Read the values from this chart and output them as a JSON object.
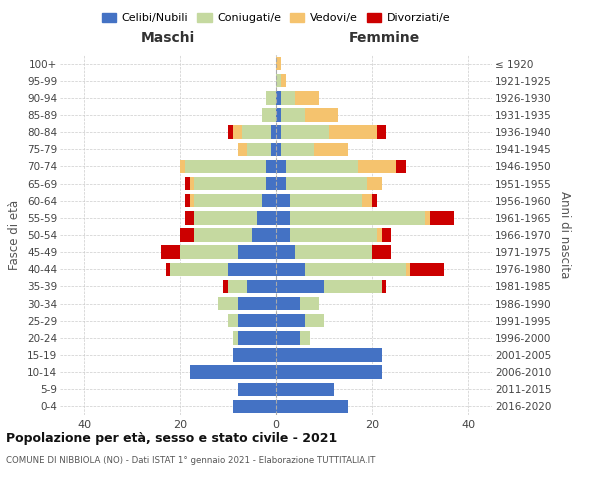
{
  "age_groups": [
    "0-4",
    "5-9",
    "10-14",
    "15-19",
    "20-24",
    "25-29",
    "30-34",
    "35-39",
    "40-44",
    "45-49",
    "50-54",
    "55-59",
    "60-64",
    "65-69",
    "70-74",
    "75-79",
    "80-84",
    "85-89",
    "90-94",
    "95-99",
    "100+"
  ],
  "birth_years": [
    "2016-2020",
    "2011-2015",
    "2006-2010",
    "2001-2005",
    "1996-2000",
    "1991-1995",
    "1986-1990",
    "1981-1985",
    "1976-1980",
    "1971-1975",
    "1966-1970",
    "1961-1965",
    "1956-1960",
    "1951-1955",
    "1946-1950",
    "1941-1945",
    "1936-1940",
    "1931-1935",
    "1926-1930",
    "1921-1925",
    "≤ 1920"
  ],
  "colors": {
    "celibi": "#4472C4",
    "coniugati": "#c5d9a0",
    "vedovi": "#f5c36e",
    "divorziati": "#cc0000"
  },
  "maschi": {
    "celibi": [
      9,
      8,
      18,
      9,
      8,
      8,
      8,
      6,
      10,
      8,
      5,
      4,
      3,
      2,
      2,
      1,
      1,
      0,
      0,
      0,
      0
    ],
    "coniugati": [
      0,
      0,
      0,
      0,
      1,
      2,
      4,
      4,
      12,
      12,
      12,
      13,
      14,
      15,
      17,
      5,
      6,
      3,
      2,
      0,
      0
    ],
    "vedovi": [
      0,
      0,
      0,
      0,
      0,
      0,
      0,
      0,
      0,
      0,
      0,
      0,
      1,
      1,
      1,
      2,
      2,
      0,
      0,
      0,
      0
    ],
    "divorziati": [
      0,
      0,
      0,
      0,
      0,
      0,
      0,
      1,
      1,
      4,
      3,
      2,
      1,
      1,
      0,
      0,
      1,
      0,
      0,
      0,
      0
    ]
  },
  "femmine": {
    "celibi": [
      15,
      12,
      22,
      22,
      5,
      6,
      5,
      10,
      6,
      4,
      3,
      3,
      3,
      2,
      2,
      1,
      1,
      1,
      1,
      0,
      0
    ],
    "coniugati": [
      0,
      0,
      0,
      0,
      2,
      4,
      4,
      12,
      21,
      16,
      18,
      28,
      15,
      17,
      15,
      7,
      10,
      5,
      3,
      1,
      0
    ],
    "vedovi": [
      0,
      0,
      0,
      0,
      0,
      0,
      0,
      0,
      1,
      0,
      1,
      1,
      2,
      3,
      8,
      7,
      10,
      7,
      5,
      1,
      1
    ],
    "divorziati": [
      0,
      0,
      0,
      0,
      0,
      0,
      0,
      1,
      7,
      4,
      2,
      5,
      1,
      0,
      2,
      0,
      2,
      0,
      0,
      0,
      0
    ]
  },
  "xlim": 45,
  "title": "Popolazione per età, sesso e stato civile - 2021",
  "subtitle": "COMUNE DI NIBBIOLA (NO) - Dati ISTAT 1° gennaio 2021 - Elaborazione TUTTITALIA.IT",
  "xlabel_left": "Maschi",
  "xlabel_right": "Femmine",
  "ylabel_left": "Fasce di età",
  "ylabel_right": "Anni di nascita",
  "legend_labels": [
    "Celibi/Nubili",
    "Coniugati/e",
    "Vedovi/e",
    "Divorziati/e"
  ]
}
